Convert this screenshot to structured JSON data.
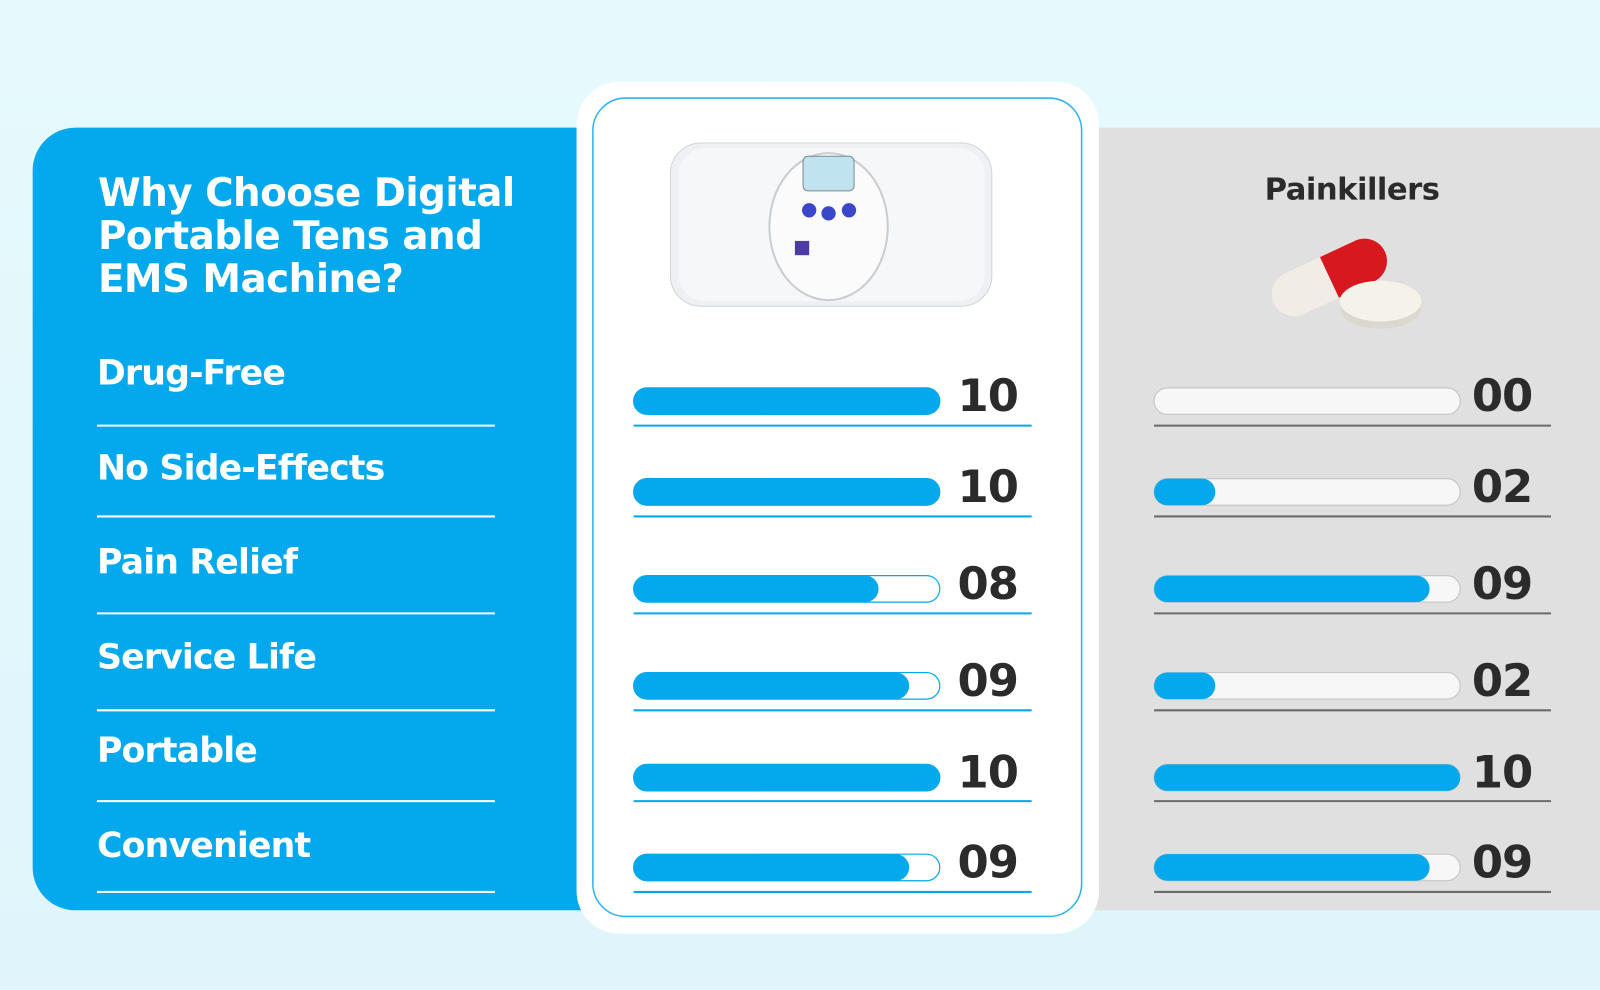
{
  "chart_data": {
    "type": "bar",
    "orientation": "horizontal",
    "title": "Why Choose Digital Portable Tens and EMS Machine?",
    "categories": [
      "Drug-Free",
      "No Side-Effects",
      "Pain Relief",
      "Service Life",
      "Portable",
      "Convenient"
    ],
    "xlim": [
      0,
      10
    ],
    "series": [
      {
        "color": "#03a9ec",
        "values": [
          10,
          10,
          8,
          9,
          10,
          9
        ],
        "value_labels": [
          "10",
          "10",
          "08",
          "09",
          "10",
          "09"
        ]
      },
      {
        "name": "Painkillers",
        "color": "#03a9ec",
        "values": [
          0,
          2,
          9,
          2,
          10,
          9
        ],
        "value_labels": [
          "00",
          "02",
          "09",
          "02",
          "10",
          "09"
        ]
      }
    ]
  }
}
